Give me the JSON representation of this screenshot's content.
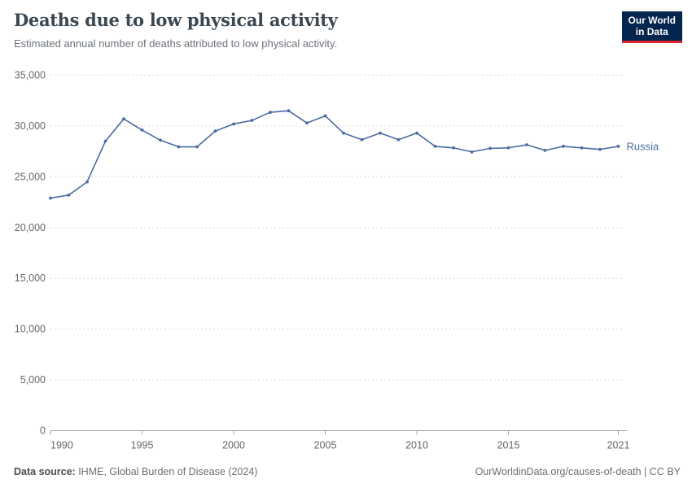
{
  "header": {
    "title": "Deaths due to low physical activity",
    "subtitle": "Estimated annual number of deaths attributed to low physical activity."
  },
  "logo": {
    "line1": "Our World",
    "line2": "in Data",
    "bg_color": "#04254d",
    "accent_color": "#e0262c"
  },
  "footer": {
    "datasource_label": "Data source:",
    "datasource_value": " IHME, Global Burden of Disease (2024)",
    "link": "OurWorldinData.org/causes-of-death | CC BY"
  },
  "chart_data": {
    "type": "line",
    "title": "Deaths due to low physical activity",
    "subtitle": "Estimated annual number of deaths attributed to low physical activity.",
    "xlabel": "",
    "ylabel": "",
    "ylim": [
      0,
      35000
    ],
    "grid": "dashed-horizontal",
    "legend": "end-of-line-label",
    "x": [
      1990,
      1991,
      1992,
      1993,
      1994,
      1995,
      1996,
      1997,
      1998,
      1999,
      2000,
      2001,
      2002,
      2003,
      2004,
      2005,
      2006,
      2007,
      2008,
      2009,
      2010,
      2011,
      2012,
      2013,
      2014,
      2015,
      2016,
      2017,
      2018,
      2019,
      2020,
      2021
    ],
    "series": [
      {
        "name": "Russia",
        "color": "#4c6ba3",
        "values": [
          22900,
          23200,
          24500,
          28500,
          30700,
          29600,
          28600,
          27950,
          27950,
          29500,
          30200,
          30550,
          31350,
          31500,
          30300,
          31000,
          29300,
          28650,
          29300,
          28650,
          29300,
          28000,
          27850,
          27450,
          27800,
          27850,
          28150,
          27600,
          28000,
          27850,
          27700,
          28000
        ]
      }
    ],
    "x_ticks": [
      1990,
      1995,
      2000,
      2005,
      2010,
      2015,
      2021
    ],
    "x_tick_labels": [
      "1990",
      "1995",
      "2000",
      "2005",
      "2010",
      "2015",
      "2021"
    ],
    "y_ticks": [
      0,
      5000,
      10000,
      15000,
      20000,
      25000,
      30000,
      35000
    ],
    "y_tick_labels": [
      "0",
      "5,000",
      "10,000",
      "15,000",
      "20,000",
      "25,000",
      "30,000",
      "35,000"
    ]
  }
}
